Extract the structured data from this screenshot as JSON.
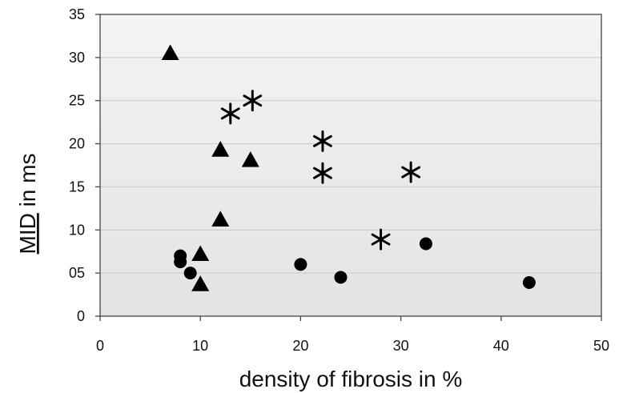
{
  "chart_data": {
    "type": "scatter",
    "title": "",
    "xlabel": "density of  fibrosis in %",
    "ylabel_prefix": "MID",
    "ylabel_suffix": " in ms",
    "xlim": [
      0,
      50
    ],
    "ylim": [
      0,
      35
    ],
    "x_ticks": [
      0,
      10,
      20,
      30,
      40,
      50
    ],
    "x_tick_labels": [
      "0",
      "10",
      "20",
      "30",
      "40",
      "50"
    ],
    "y_ticks": [
      0,
      5,
      10,
      15,
      20,
      25,
      30,
      35
    ],
    "y_tick_labels": [
      "0",
      "05",
      "10",
      "15",
      "20",
      "25",
      "30",
      "35"
    ],
    "grid": true,
    "legend": "none",
    "series": [
      {
        "marker": "triangle",
        "color": "#000000",
        "points": [
          {
            "x": 7.0,
            "y": 30.5
          },
          {
            "x": 12.0,
            "y": 19.3
          },
          {
            "x": 15.0,
            "y": 18.1
          },
          {
            "x": 12.0,
            "y": 11.2
          },
          {
            "x": 10.0,
            "y": 7.2
          },
          {
            "x": 10.0,
            "y": 3.7
          }
        ]
      },
      {
        "marker": "asterisk",
        "color": "#000000",
        "points": [
          {
            "x": 13.0,
            "y": 23.5
          },
          {
            "x": 15.2,
            "y": 25.0
          },
          {
            "x": 22.2,
            "y": 20.3
          },
          {
            "x": 22.2,
            "y": 16.6
          },
          {
            "x": 31.0,
            "y": 16.7
          },
          {
            "x": 28.0,
            "y": 8.9
          }
        ]
      },
      {
        "marker": "circle",
        "color": "#000000",
        "points": [
          {
            "x": 8.0,
            "y": 7.0
          },
          {
            "x": 8.0,
            "y": 6.3
          },
          {
            "x": 9.0,
            "y": 5.0
          },
          {
            "x": 20.0,
            "y": 6.0
          },
          {
            "x": 24.0,
            "y": 4.5
          },
          {
            "x": 32.5,
            "y": 8.4
          },
          {
            "x": 42.8,
            "y": 3.9
          }
        ]
      }
    ]
  },
  "colors": {
    "plot_background_top": "#f4f4f4",
    "plot_background_bottom": "#e3e3e3",
    "marker": "#000000"
  }
}
